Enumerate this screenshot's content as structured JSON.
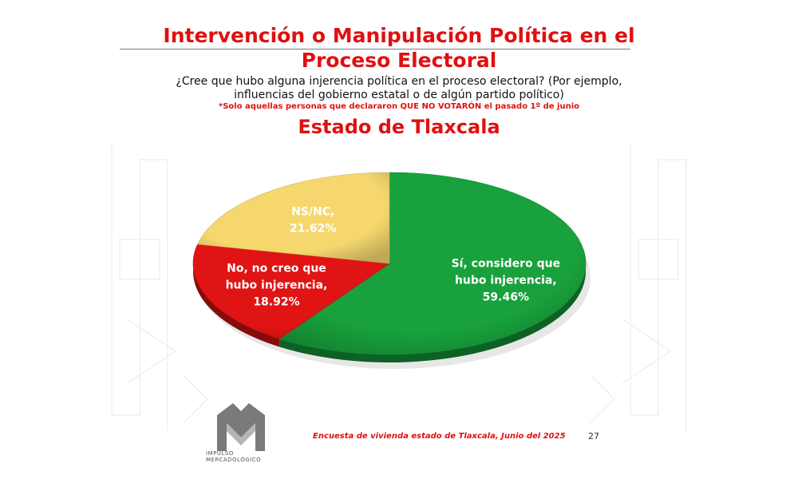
{
  "header": {
    "title_line1": "Intervención o Manipulación Política en el",
    "title_line2": "Proceso Electoral",
    "question_line1": "¿Cree que hubo alguna injerencia política en el proceso electoral? (Por ejemplo,",
    "question_line2": "influencias del gobierno estatal o de algún partido político)",
    "note": "*Solo aquellas personas que declararon QUE NO VOTARÓN el pasado 1º de junio",
    "subtitle": "Estado de Tlaxcala"
  },
  "chart_data": {
    "type": "pie",
    "title": "Estado de Tlaxcala",
    "slices": [
      {
        "label_lines": [
          "Sí, considero que",
          "hubo injerencia,",
          "59.46%"
        ],
        "category": "Sí, considero que hubo injerencia",
        "value": 59.46,
        "color": "#18a13c"
      },
      {
        "label_lines": [
          "No, no creo que",
          "hubo injerencia,",
          "18.92%"
        ],
        "category": "No, no creo que hubo injerencia",
        "value": 18.92,
        "color": "#e01414"
      },
      {
        "label_lines": [
          "NS/NC,",
          "21.62%"
        ],
        "category": "NS/NC",
        "value": 21.62,
        "color": "#f5d76e"
      }
    ]
  },
  "footer": {
    "source": "Encuesta de vivienda estado de Tlaxcala, Junio   del 2025",
    "page_number": "27",
    "logo_text_line1": "IMPULSO",
    "logo_text_line2": "MERCADOLÓGICO"
  }
}
